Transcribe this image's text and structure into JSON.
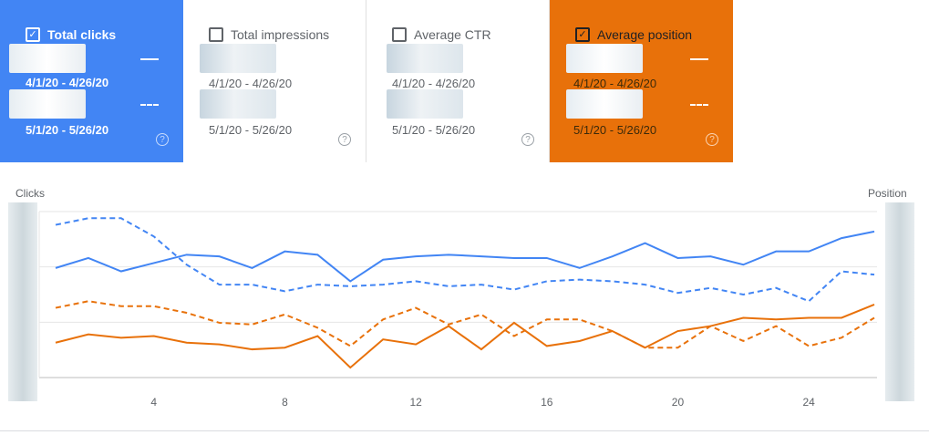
{
  "cards": [
    {
      "title": "Total clicks",
      "checked": true,
      "range1": "4/1/20 - 4/26/20",
      "range2": "5/1/20 - 5/26/20",
      "help_icon": "help-circle-icon",
      "color": "#4285f4"
    },
    {
      "title": "Total impressions",
      "checked": false,
      "range1": "4/1/20 - 4/26/20",
      "range2": "5/1/20 - 5/26/20",
      "help_icon": "help-circle-icon"
    },
    {
      "title": "Average CTR",
      "checked": false,
      "range1": "4/1/20 - 4/26/20",
      "range2": "5/1/20 - 5/26/20",
      "help_icon": "help-circle-icon"
    },
    {
      "title": "Average position",
      "checked": true,
      "range1": "4/1/20 - 4/26/20",
      "range2": "5/1/20 - 5/26/20",
      "help_icon": "help-circle-icon",
      "color": "#e8710a"
    }
  ],
  "chart_data": {
    "type": "line",
    "ylabel_left": "Clicks",
    "ylabel_right": "Position",
    "x_ticks": [
      4,
      8,
      12,
      16,
      20,
      24
    ],
    "x": [
      1,
      2,
      3,
      4,
      5,
      6,
      7,
      8,
      9,
      10,
      11,
      12,
      13,
      14,
      15,
      16,
      17,
      18,
      19,
      20,
      21,
      22,
      23,
      24,
      25,
      26
    ],
    "grid": true,
    "series": [
      {
        "metric": "Total clicks",
        "period": "4/1/20 - 4/26/20",
        "style": "solid",
        "color": "#4285f4",
        "values": [
          0.66,
          0.72,
          0.64,
          0.69,
          0.74,
          0.73,
          0.66,
          0.76,
          0.74,
          0.58,
          0.71,
          0.73,
          0.74,
          0.73,
          0.72,
          0.72,
          0.66,
          0.73,
          0.81,
          0.72,
          0.73,
          0.68,
          0.76,
          0.76,
          0.84,
          0.88
        ]
      },
      {
        "metric": "Total clicks",
        "period": "5/1/20 - 5/26/20",
        "style": "dashed",
        "color": "#4285f4",
        "values": [
          0.92,
          0.96,
          0.96,
          0.85,
          0.68,
          0.56,
          0.56,
          0.52,
          0.56,
          0.55,
          0.56,
          0.58,
          0.55,
          0.56,
          0.53,
          0.58,
          0.59,
          0.58,
          0.56,
          0.51,
          0.54,
          0.5,
          0.54,
          0.46,
          0.64,
          0.62
        ]
      },
      {
        "metric": "Average position",
        "period": "4/1/20 - 4/26/20",
        "style": "solid",
        "color": "#e8710a",
        "values": [
          0.21,
          0.26,
          0.24,
          0.25,
          0.21,
          0.2,
          0.17,
          0.18,
          0.25,
          0.06,
          0.23,
          0.2,
          0.31,
          0.17,
          0.33,
          0.19,
          0.22,
          0.28,
          0.18,
          0.28,
          0.31,
          0.36,
          0.35,
          0.36,
          0.36,
          0.44
        ]
      },
      {
        "metric": "Average position",
        "period": "5/1/20 - 5/26/20",
        "style": "dashed",
        "color": "#e8710a",
        "values": [
          0.42,
          0.46,
          0.43,
          0.43,
          0.39,
          0.33,
          0.32,
          0.38,
          0.3,
          0.19,
          0.35,
          0.42,
          0.32,
          0.38,
          0.25,
          0.35,
          0.35,
          0.28,
          0.18,
          0.18,
          0.31,
          0.22,
          0.31,
          0.19,
          0.24,
          0.36
        ]
      }
    ]
  }
}
